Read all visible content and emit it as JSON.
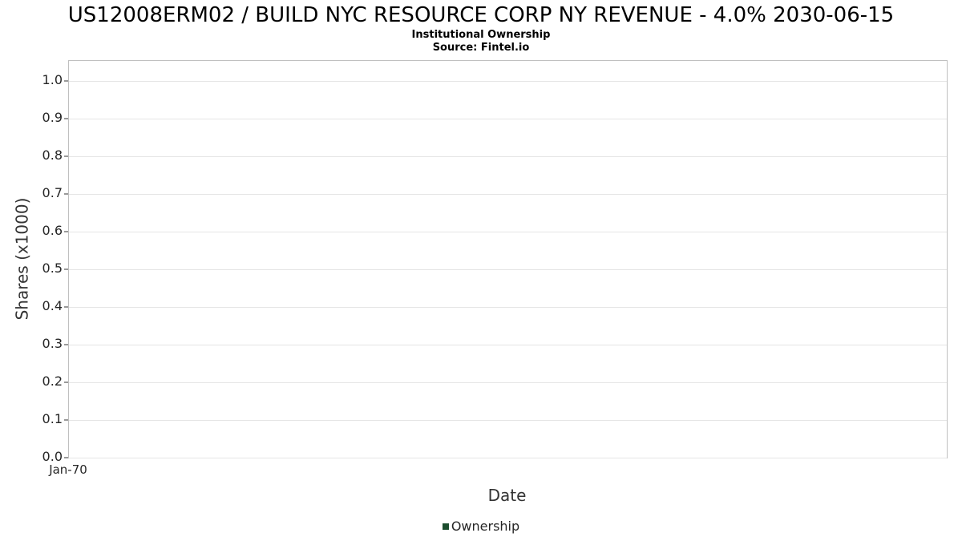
{
  "header": {
    "title": "US12008ERM02 / BUILD NYC RESOURCE CORP NY REVENUE - 4.0% 2030-06-15",
    "subtitle": "Institutional Ownership",
    "source": "Source: Fintel.io"
  },
  "chart_data": {
    "type": "line",
    "title": "US12008ERM02 / BUILD NYC RESOURCE CORP NY REVENUE - 4.0% 2030-06-15",
    "subtitle": "Institutional Ownership",
    "source": "Source: Fintel.io",
    "xlabel": "Date",
    "ylabel": "Shares (x1000)",
    "x_ticks": [
      "Jan-70"
    ],
    "y_ticks": [
      "0.0",
      "0.1",
      "0.2",
      "0.3",
      "0.4",
      "0.5",
      "0.6",
      "0.7",
      "0.8",
      "0.9",
      "1.0"
    ],
    "ylim": [
      0.0,
      1.0
    ],
    "y_display_max": 1.053,
    "grid": true,
    "legend_position": "bottom",
    "series": [
      {
        "name": "Ownership",
        "color": "#1b4d2e",
        "x": [],
        "values": []
      }
    ],
    "note": "empty chart - no data points plotted"
  }
}
